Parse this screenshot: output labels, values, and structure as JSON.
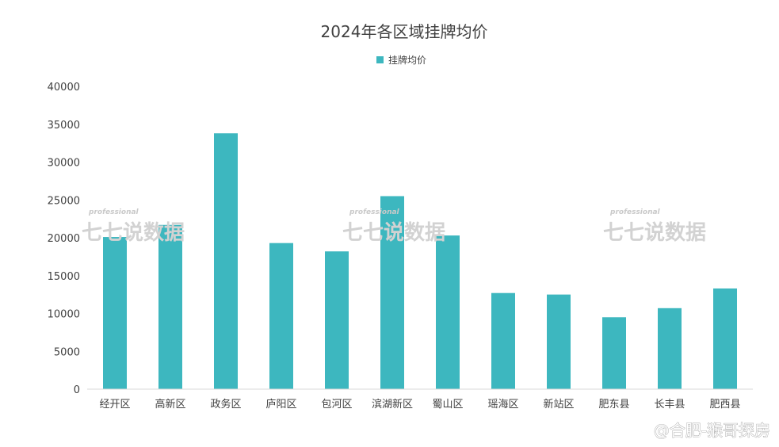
{
  "chart_data": {
    "type": "bar",
    "title": "2024年各区域挂牌均价",
    "series": [
      {
        "name": "挂牌均价",
        "color": "#3db7bf",
        "values": [
          20100,
          21700,
          33800,
          19300,
          18200,
          25500,
          20300,
          12700,
          12500,
          9500,
          10700,
          13300
        ]
      }
    ],
    "categories": [
      "经开区",
      "高新区",
      "政务区",
      "庐阳区",
      "包河区",
      "滨湖新区",
      "蜀山区",
      "瑶海区",
      "新站区",
      "肥东县",
      "长丰县",
      "肥西县"
    ],
    "xlabel": "",
    "ylabel": "",
    "ylim": [
      0,
      40000
    ],
    "yticks": [
      "0",
      "5000",
      "10000",
      "15000",
      "20000",
      "25000",
      "30000",
      "35000",
      "40000"
    ],
    "grid": false,
    "legend": "top-center"
  },
  "watermark": {
    "small_text": "professional",
    "big_text": "七七说数据"
  },
  "credit": "@合肥-猴哥探房",
  "colors": {
    "bar": "#3db7bf",
    "axis": "#d9d9d9",
    "text": "#404040"
  }
}
